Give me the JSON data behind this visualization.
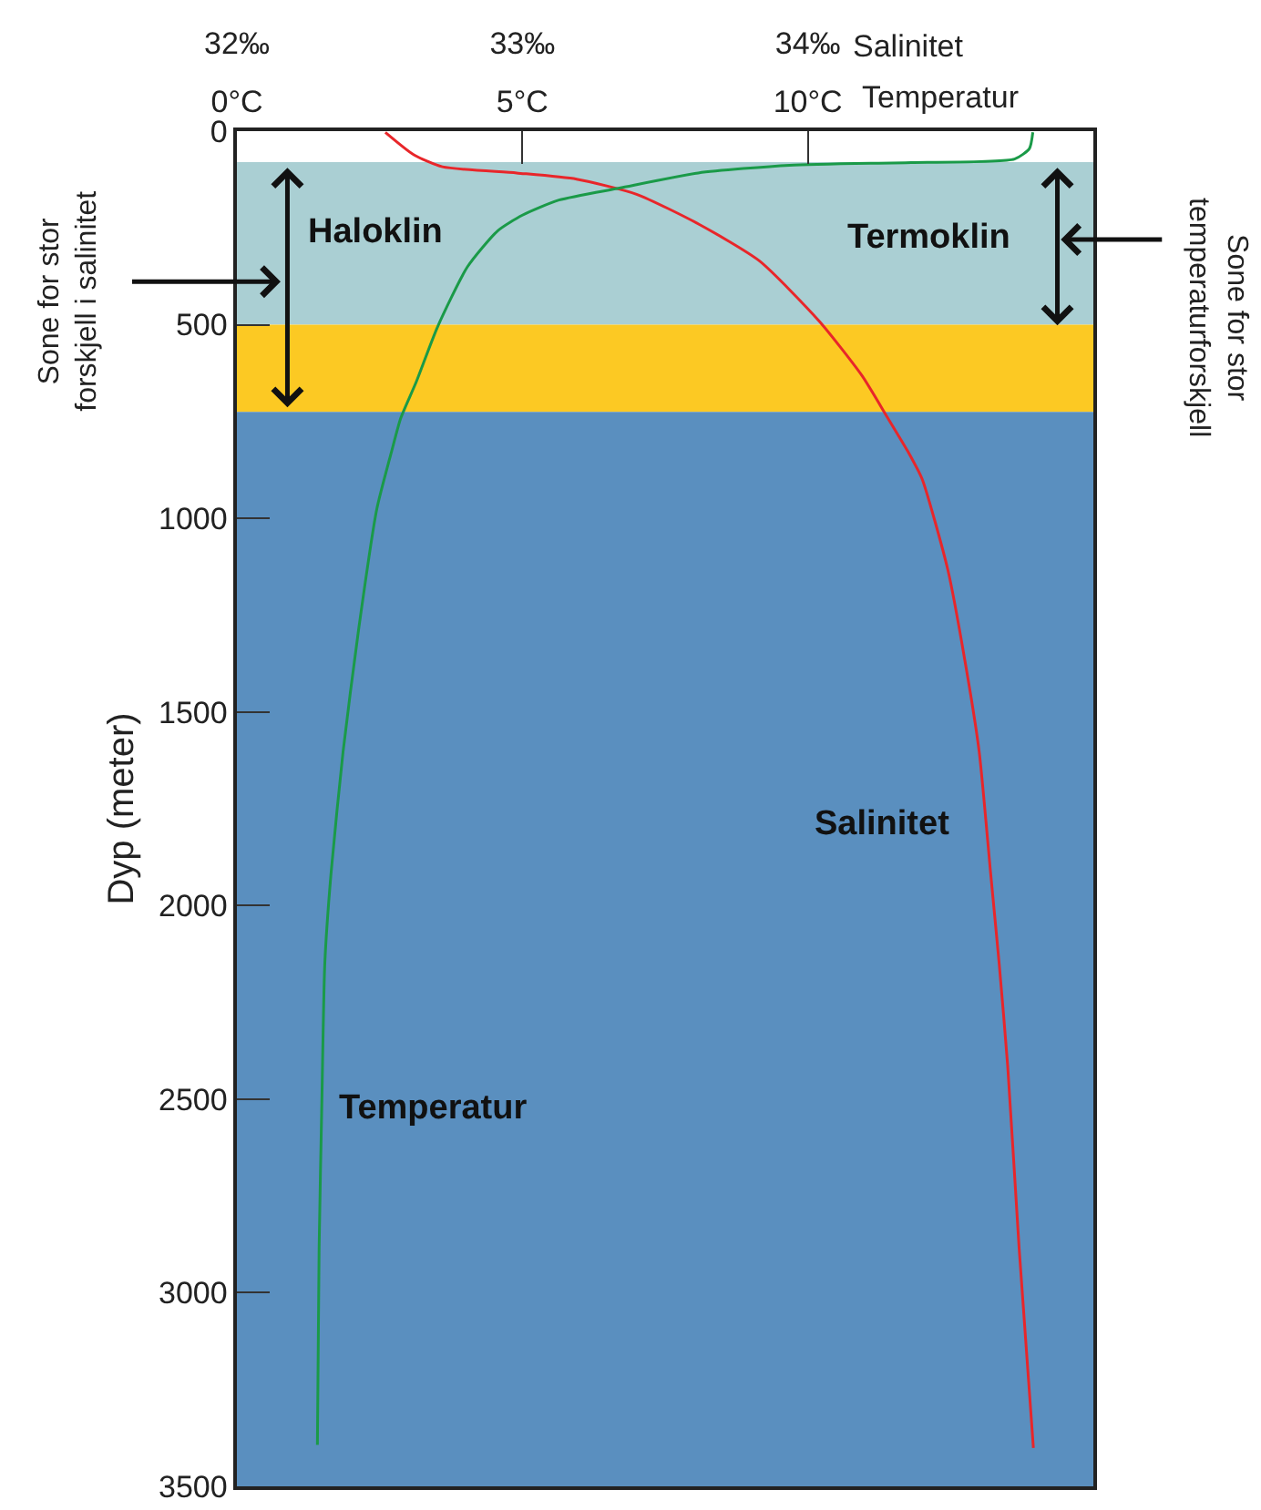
{
  "chart_data": {
    "type": "line",
    "orientation": "horizontal",
    "xlabel": "Salinitet",
    "x2label": "Temperatur",
    "ylabel": "Dyp (meter)",
    "xlim": [
      32,
      35
    ],
    "xticks": [
      {
        "value": 32,
        "label": "32‰"
      },
      {
        "value": 33,
        "label": "33‰"
      },
      {
        "value": 34,
        "label": "34‰"
      }
    ],
    "x2lim": [
      0,
      15
    ],
    "x2ticks": [
      {
        "value": 0,
        "label": "0°C"
      },
      {
        "value": 5,
        "label": "5°C"
      },
      {
        "value": 10,
        "label": "10°C"
      }
    ],
    "ylim": [
      3500,
      0
    ],
    "yticks": [
      0,
      500,
      1000,
      1500,
      2000,
      2500,
      3000,
      3500
    ],
    "grid": false,
    "legend": false,
    "line_style": "solid",
    "marker": "none",
    "bands": [
      {
        "axis": "y",
        "from": 80,
        "to": 500,
        "color": "#aacfd3"
      },
      {
        "axis": "y",
        "from": 500,
        "to": 725,
        "color": "#fcc923"
      },
      {
        "axis": "y",
        "from": 725,
        "to": 3500,
        "color": "#5a8fbf"
      }
    ],
    "series": [
      {
        "name": "Salinitet",
        "color": "#e8262a",
        "x": [
          3,
          61,
          92,
          108,
          124,
          163,
          241,
          335,
          491,
          632,
          741,
          827,
          898,
          1132,
          1367,
          1602,
          1915,
          2149,
          2415,
          2885,
          3401
        ],
        "values": [
          32.52,
          32.62,
          32.72,
          32.98,
          33.19,
          33.4,
          33.62,
          33.83,
          34.04,
          34.19,
          34.28,
          34.35,
          34.4,
          34.49,
          34.55,
          34.6,
          34.64,
          34.67,
          34.7,
          34.74,
          34.79
        ]
      },
      {
        "name": "Temperatur",
        "color": "#1a9a48",
        "axis": "x2",
        "x": [
          3,
          45,
          72,
          81,
          88,
          108,
          147,
          178,
          217,
          257,
          350,
          507,
          648,
          741,
          827,
          976,
          1289,
          1602,
          1915,
          2149,
          2492,
          2885,
          3393
        ],
        "values": [
          13.94,
          13.88,
          13.62,
          11.81,
          9.68,
          8.08,
          6.7,
          5.64,
          5.0,
          4.57,
          4.04,
          3.51,
          3.14,
          2.87,
          2.71,
          2.45,
          2.13,
          1.86,
          1.65,
          1.54,
          1.49,
          1.44,
          1.41
        ]
      }
    ],
    "annotations": [
      "Haloklin",
      "Termoklin",
      "Sone for stor\nforskjell i salinitet",
      "Sone for stor\ntemperaturforskjell"
    ]
  }
}
